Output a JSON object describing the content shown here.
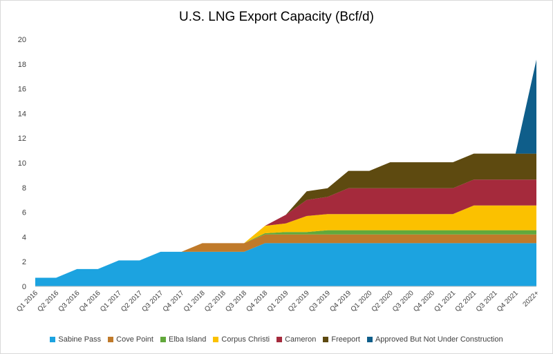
{
  "chart_data": {
    "type": "area",
    "stacked": true,
    "title": "U.S. LNG Export Capacity (Bcf/d)",
    "xlabel": "",
    "ylabel": "",
    "ylim": [
      0,
      20
    ],
    "yticks": [
      0,
      2,
      4,
      6,
      8,
      10,
      12,
      14,
      16,
      18,
      20
    ],
    "grid": false,
    "legend_position": "bottom",
    "categories": [
      "Q1 2016",
      "Q2 2016",
      "Q3 2016",
      "Q4 2016",
      "Q1 2017",
      "Q2 2017",
      "Q3 2017",
      "Q4 2017",
      "Q1 2018",
      "Q2 2018",
      "Q3 2018",
      "Q4 2018",
      "Q1 2019",
      "Q2 2019",
      "Q3 2019",
      "Q4 2019",
      "Q1 2020",
      "Q2 2020",
      "Q3 2020",
      "Q4 2020",
      "Q1 2021",
      "Q2 2021",
      "Q3 2021",
      "Q4 2021",
      "2022+"
    ],
    "series": [
      {
        "name": "Sabine Pass",
        "color": "#1ca3e0",
        "values": [
          0.7,
          0.7,
          1.4,
          1.4,
          2.1,
          2.1,
          2.8,
          2.8,
          2.8,
          2.8,
          2.8,
          3.5,
          3.5,
          3.5,
          3.5,
          3.5,
          3.5,
          3.5,
          3.5,
          3.5,
          3.5,
          3.5,
          3.5,
          3.5,
          3.5
        ]
      },
      {
        "name": "Cove Point",
        "color": "#c07a2a",
        "values": [
          0,
          0,
          0,
          0,
          0,
          0,
          0,
          0,
          0.7,
          0.7,
          0.7,
          0.7,
          0.7,
          0.7,
          0.7,
          0.7,
          0.7,
          0.7,
          0.7,
          0.7,
          0.7,
          0.7,
          0.7,
          0.7,
          0.7
        ]
      },
      {
        "name": "Elba Island",
        "color": "#62a83b",
        "values": [
          0,
          0,
          0,
          0,
          0,
          0,
          0,
          0,
          0,
          0,
          0,
          0.1,
          0.2,
          0.2,
          0.35,
          0.35,
          0.35,
          0.35,
          0.35,
          0.35,
          0.35,
          0.35,
          0.35,
          0.35,
          0.35
        ]
      },
      {
        "name": "Corpus Christi",
        "color": "#fbc100",
        "values": [
          0,
          0,
          0,
          0,
          0,
          0,
          0,
          0,
          0,
          0,
          0,
          0.6,
          0.7,
          1.3,
          1.3,
          1.3,
          1.3,
          1.3,
          1.3,
          1.3,
          1.3,
          2.0,
          2.0,
          2.0,
          2.0
        ]
      },
      {
        "name": "Cameron",
        "color": "#a52a3c",
        "values": [
          0,
          0,
          0,
          0,
          0,
          0,
          0,
          0,
          0,
          0,
          0,
          0,
          0.7,
          1.3,
          1.4,
          2.1,
          2.1,
          2.1,
          2.1,
          2.1,
          2.1,
          2.1,
          2.1,
          2.1,
          2.1
        ]
      },
      {
        "name": "Freeport",
        "color": "#5e4a10",
        "values": [
          0,
          0,
          0,
          0,
          0,
          0,
          0,
          0,
          0,
          0,
          0,
          0,
          0,
          0.7,
          0.7,
          1.4,
          1.4,
          2.1,
          2.1,
          2.1,
          2.1,
          2.1,
          2.1,
          2.1,
          2.1
        ]
      },
      {
        "name": "Approved But Not Under Construction",
        "color": "#0f5e8a",
        "values": [
          0,
          0,
          0,
          0,
          0,
          0,
          0,
          0,
          0,
          0,
          0,
          0,
          0,
          0,
          0,
          0,
          0,
          0,
          0,
          0,
          0,
          0,
          0,
          0,
          7.6
        ]
      }
    ]
  }
}
